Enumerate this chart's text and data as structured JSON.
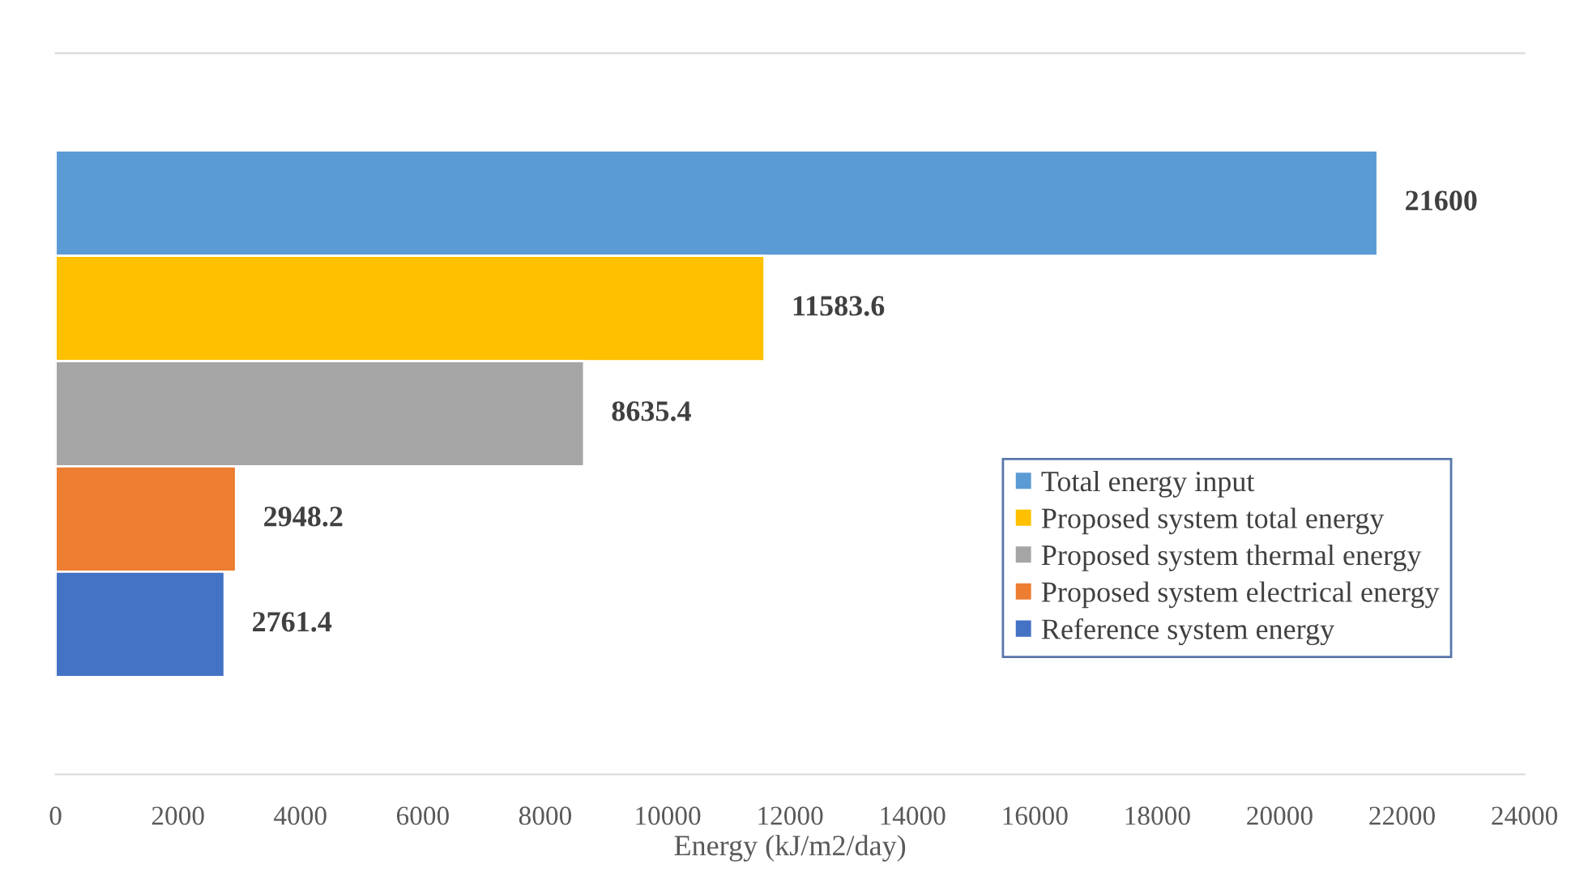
{
  "chart_data": {
    "type": "bar",
    "orientation": "horizontal",
    "xlabel": "Energy (kJ/m2/day)",
    "categories": [
      null
    ],
    "series": [
      {
        "name": "Total energy input",
        "color": "#5b9bd5",
        "values": [
          21600
        ]
      },
      {
        "name": "Proposed system total energy",
        "color": "#ffc000",
        "values": [
          11583.6
        ]
      },
      {
        "name": "Proposed system thermal energy",
        "color": "#a5a5a5",
        "values": [
          8635.4
        ]
      },
      {
        "name": "Proposed system electrical energy",
        "color": "#ed7d31",
        "values": [
          2948.2
        ]
      },
      {
        "name": "Reference system energy",
        "color": "#4472c4",
        "values": [
          2761.4
        ]
      }
    ],
    "xlim": [
      0,
      24000
    ],
    "xticks": [
      0,
      2000,
      4000,
      6000,
      8000,
      10000,
      12000,
      14000,
      16000,
      18000,
      20000,
      22000,
      24000
    ],
    "tick_labels": "x",
    "data_labels": true,
    "grid": false,
    "legend": "right"
  }
}
